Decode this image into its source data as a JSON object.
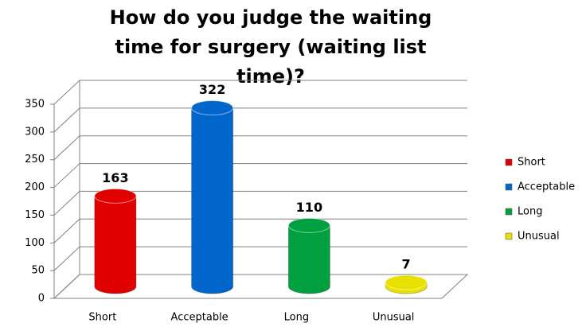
{
  "chart_data": {
    "type": "bar",
    "title": "How do you judge the waiting time for surgery (waiting list time)?",
    "categories": [
      "Short",
      "Acceptable",
      "Long",
      "Unusual"
    ],
    "values": [
      163,
      322,
      110,
      7
    ],
    "colors": [
      "#e00000",
      "#0066cc",
      "#00a040",
      "#e8e000"
    ],
    "ylim": [
      0,
      350
    ],
    "yticks": [
      0,
      50,
      100,
      150,
      200,
      250,
      300,
      350
    ],
    "grid": true,
    "legend": "right"
  }
}
